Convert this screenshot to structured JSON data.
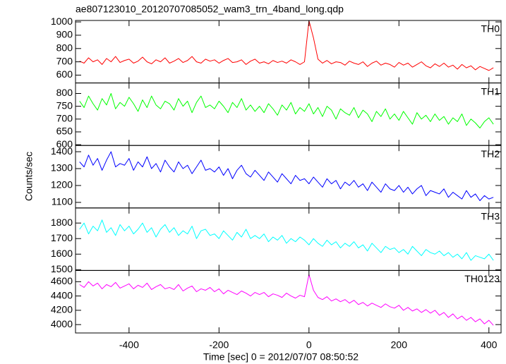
{
  "title": "ae807123010_20120707085052_wam3_trn_4band_long.qdp",
  "ylabel": "Counts/sec",
  "xlabel": "Time [sec] 0 = 2012/07/07 08:50:52",
  "chart_data": [
    {
      "type": "line",
      "label": "TH0",
      "xlim": [
        -519,
        427
      ],
      "xticks": [
        -400,
        -200,
        0,
        200,
        400
      ],
      "ylim": [
        541,
        1011
      ],
      "yticks": [
        600,
        700,
        800,
        900,
        1000
      ],
      "x": [
        -510,
        -500,
        -490,
        -480,
        -470,
        -460,
        -450,
        -440,
        -430,
        -420,
        -410,
        -400,
        -390,
        -380,
        -370,
        -360,
        -350,
        -340,
        -330,
        -320,
        -310,
        -300,
        -290,
        -280,
        -270,
        -260,
        -250,
        -240,
        -230,
        -220,
        -210,
        -200,
        -190,
        -180,
        -170,
        -160,
        -150,
        -140,
        -130,
        -120,
        -110,
        -100,
        -90,
        -80,
        -70,
        -60,
        -50,
        -40,
        -30,
        -20,
        -10,
        0,
        10,
        20,
        30,
        40,
        50,
        60,
        70,
        80,
        90,
        100,
        110,
        120,
        130,
        140,
        150,
        160,
        170,
        180,
        190,
        200,
        210,
        220,
        230,
        240,
        250,
        260,
        270,
        280,
        290,
        300,
        310,
        320,
        330,
        340,
        350,
        360,
        370,
        380,
        390,
        400,
        410
      ],
      "series": [
        {
          "name": "TH0",
          "color": "#ff0000",
          "values": [
            705,
            690,
            730,
            700,
            715,
            680,
            725,
            700,
            740,
            695,
            710,
            720,
            690,
            705,
            735,
            700,
            685,
            715,
            700,
            730,
            690,
            705,
            725,
            695,
            710,
            740,
            700,
            690,
            720,
            705,
            715,
            690,
            710,
            725,
            695,
            700,
            715,
            680,
            705,
            720,
            690,
            700,
            685,
            710,
            695,
            705,
            690,
            715,
            700,
            680,
            700,
            1010,
            880,
            720,
            690,
            710,
            685,
            700,
            695,
            675,
            705,
            690,
            680,
            700,
            665,
            690,
            705,
            675,
            690,
            680,
            660,
            695,
            675,
            690,
            660,
            680,
            700,
            670,
            655,
            685,
            665,
            690,
            660,
            675,
            645,
            680,
            655,
            670,
            640,
            665,
            650,
            635,
            655
          ]
        }
      ]
    },
    {
      "type": "line",
      "label": "TH1",
      "xlim": [
        -519,
        427
      ],
      "xticks": [
        -400,
        -200,
        0,
        200,
        400
      ],
      "ylim": [
        597,
        841
      ],
      "yticks": [
        600,
        650,
        700,
        750,
        800
      ],
      "x": [
        -510,
        -500,
        -490,
        -480,
        -470,
        -460,
        -450,
        -440,
        -430,
        -420,
        -410,
        -400,
        -390,
        -380,
        -370,
        -360,
        -350,
        -340,
        -330,
        -320,
        -310,
        -300,
        -290,
        -280,
        -270,
        -260,
        -250,
        -240,
        -230,
        -220,
        -210,
        -200,
        -190,
        -180,
        -170,
        -160,
        -150,
        -140,
        -130,
        -120,
        -110,
        -100,
        -90,
        -80,
        -70,
        -60,
        -50,
        -40,
        -30,
        -20,
        -10,
        0,
        10,
        20,
        30,
        40,
        50,
        60,
        70,
        80,
        90,
        100,
        110,
        120,
        130,
        140,
        150,
        160,
        170,
        180,
        190,
        200,
        210,
        220,
        230,
        240,
        250,
        260,
        270,
        280,
        290,
        300,
        310,
        320,
        330,
        340,
        350,
        360,
        370,
        380,
        390,
        400,
        410
      ],
      "series": [
        {
          "name": "TH1",
          "color": "#00ff00",
          "values": [
            770,
            745,
            790,
            760,
            735,
            780,
            755,
            800,
            740,
            765,
            750,
            785,
            760,
            730,
            775,
            745,
            790,
            755,
            740,
            770,
            760,
            735,
            780,
            750,
            770,
            725,
            765,
            790,
            745,
            755,
            740,
            770,
            750,
            725,
            765,
            745,
            780,
            735,
            755,
            730,
            750,
            725,
            760,
            740,
            715,
            755,
            735,
            765,
            720,
            745,
            730,
            760,
            720,
            745,
            710,
            750,
            735,
            700,
            740,
            725,
            715,
            745,
            705,
            735,
            720,
            690,
            730,
            710,
            740,
            700,
            720,
            695,
            730,
            705,
            680,
            725,
            700,
            715,
            690,
            720,
            695,
            710,
            680,
            705,
            690,
            720,
            675,
            700,
            685,
            665,
            690,
            705,
            680
          ]
        }
      ]
    },
    {
      "type": "line",
      "label": "TH2",
      "xlim": [
        -519,
        427
      ],
      "xticks": [
        -400,
        -200,
        0,
        200,
        400
      ],
      "ylim": [
        1067,
        1437
      ],
      "yticks": [
        1100,
        1200,
        1300,
        1400
      ],
      "x": [
        -510,
        -500,
        -490,
        -480,
        -470,
        -460,
        -450,
        -440,
        -430,
        -420,
        -410,
        -400,
        -390,
        -380,
        -370,
        -360,
        -350,
        -340,
        -330,
        -320,
        -310,
        -300,
        -290,
        -280,
        -270,
        -260,
        -250,
        -240,
        -230,
        -220,
        -210,
        -200,
        -190,
        -180,
        -170,
        -160,
        -150,
        -140,
        -130,
        -120,
        -110,
        -100,
        -90,
        -80,
        -70,
        -60,
        -50,
        -40,
        -30,
        -20,
        -10,
        0,
        10,
        20,
        30,
        40,
        50,
        60,
        70,
        80,
        90,
        100,
        110,
        120,
        130,
        140,
        150,
        160,
        170,
        180,
        190,
        200,
        210,
        220,
        230,
        240,
        250,
        260,
        270,
        280,
        290,
        300,
        310,
        320,
        330,
        340,
        350,
        360,
        370,
        380,
        390,
        400,
        410
      ],
      "series": [
        {
          "name": "TH2",
          "color": "#0000ff",
          "values": [
            1340,
            1310,
            1380,
            1320,
            1360,
            1290,
            1350,
            1400,
            1310,
            1330,
            1320,
            1360,
            1290,
            1340,
            1310,
            1370,
            1300,
            1330,
            1280,
            1350,
            1310,
            1280,
            1340,
            1300,
            1320,
            1270,
            1310,
            1350,
            1290,
            1300,
            1280,
            1310,
            1260,
            1300,
            1240,
            1290,
            1320,
            1270,
            1250,
            1290,
            1260,
            1230,
            1280,
            1250,
            1220,
            1270,
            1240,
            1210,
            1260,
            1230,
            1240,
            1210,
            1250,
            1220,
            1190,
            1240,
            1210,
            1230,
            1180,
            1220,
            1200,
            1230,
            1190,
            1210,
            1170,
            1220,
            1190,
            1160,
            1210,
            1180,
            1170,
            1200,
            1160,
            1190,
            1150,
            1180,
            1200,
            1140,
            1170,
            1160,
            1150,
            1180,
            1130,
            1160,
            1140,
            1120,
            1170,
            1130,
            1150,
            1110,
            1140,
            1120,
            1130
          ]
        }
      ]
    },
    {
      "type": "line",
      "label": "TH3",
      "xlim": [
        -519,
        427
      ],
      "xticks": [
        -400,
        -200,
        0,
        200,
        400
      ],
      "ylim": [
        1495,
        1897
      ],
      "yticks": [
        1500,
        1600,
        1700,
        1800
      ],
      "x": [
        -510,
        -500,
        -490,
        -480,
        -470,
        -460,
        -450,
        -440,
        -430,
        -420,
        -410,
        -400,
        -390,
        -380,
        -370,
        -360,
        -350,
        -340,
        -330,
        -320,
        -310,
        -300,
        -290,
        -280,
        -270,
        -260,
        -250,
        -240,
        -230,
        -220,
        -210,
        -200,
        -190,
        -180,
        -170,
        -160,
        -150,
        -140,
        -130,
        -120,
        -110,
        -100,
        -90,
        -80,
        -70,
        -60,
        -50,
        -40,
        -30,
        -20,
        -10,
        0,
        10,
        20,
        30,
        40,
        50,
        60,
        70,
        80,
        90,
        100,
        110,
        120,
        130,
        140,
        150,
        160,
        170,
        180,
        190,
        200,
        210,
        220,
        230,
        240,
        250,
        260,
        270,
        280,
        290,
        300,
        310,
        320,
        330,
        340,
        350,
        360,
        370,
        380,
        390,
        400,
        410
      ],
      "series": [
        {
          "name": "TH3",
          "color": "#00ffff",
          "values": [
            1760,
            1800,
            1730,
            1780,
            1750,
            1820,
            1740,
            1770,
            1720,
            1790,
            1750,
            1780,
            1730,
            1760,
            1800,
            1740,
            1770,
            1710,
            1760,
            1790,
            1740,
            1770,
            1720,
            1750,
            1730,
            1780,
            1700,
            1750,
            1760,
            1720,
            1730,
            1700,
            1750,
            1720,
            1690,
            1740,
            1710,
            1760,
            1700,
            1720,
            1700,
            1730,
            1680,
            1710,
            1690,
            1720,
            1670,
            1700,
            1680,
            1710,
            1690,
            1660,
            1700,
            1670,
            1650,
            1690,
            1660,
            1680,
            1640,
            1670,
            1650,
            1680,
            1640,
            1660,
            1620,
            1670,
            1640,
            1610,
            1650,
            1630,
            1640,
            1610,
            1630,
            1600,
            1650,
            1620,
            1590,
            1630,
            1610,
            1600,
            1620,
            1590,
            1610,
            1580,
            1600,
            1570,
            1610,
            1560,
            1590,
            1580,
            1570,
            1600,
            1560
          ]
        }
      ]
    },
    {
      "type": "line",
      "label": "TH0123",
      "xlim": [
        -519,
        427
      ],
      "xticks": [
        -400,
        -200,
        0,
        200,
        400
      ],
      "ylim": [
        3883,
        4757
      ],
      "yticks": [
        4000,
        4200,
        4400,
        4600
      ],
      "x": [
        -510,
        -500,
        -490,
        -480,
        -470,
        -460,
        -450,
        -440,
        -430,
        -420,
        -410,
        -400,
        -390,
        -380,
        -370,
        -360,
        -350,
        -340,
        -330,
        -320,
        -310,
        -300,
        -290,
        -280,
        -270,
        -260,
        -250,
        -240,
        -230,
        -220,
        -210,
        -200,
        -190,
        -180,
        -170,
        -160,
        -150,
        -140,
        -130,
        -120,
        -110,
        -100,
        -90,
        -80,
        -70,
        -60,
        -50,
        -40,
        -30,
        -20,
        -10,
        0,
        10,
        20,
        30,
        40,
        50,
        60,
        70,
        80,
        90,
        100,
        110,
        120,
        130,
        140,
        150,
        160,
        170,
        180,
        190,
        200,
        210,
        220,
        230,
        240,
        250,
        260,
        270,
        280,
        290,
        300,
        310,
        320,
        330,
        340,
        350,
        360,
        370,
        380,
        390,
        400,
        410
      ],
      "series": [
        {
          "name": "TH0123",
          "color": "#ff00ff",
          "values": [
            4560,
            4520,
            4600,
            4540,
            4580,
            4500,
            4560,
            4530,
            4590,
            4510,
            4540,
            4570,
            4500,
            4550,
            4520,
            4580,
            4490,
            4530,
            4560,
            4500,
            4520,
            4490,
            4560,
            4470,
            4510,
            4540,
            4460,
            4500,
            4480,
            4520,
            4460,
            4500,
            4430,
            4480,
            4450,
            4420,
            4470,
            4440,
            4400,
            4450,
            4420,
            4450,
            4390,
            4430,
            4410,
            4380,
            4440,
            4400,
            4370,
            4410,
            4390,
            4700,
            4480,
            4380,
            4350,
            4390,
            4330,
            4360,
            4320,
            4350,
            4300,
            4340,
            4280,
            4310,
            4260,
            4300,
            4270,
            4240,
            4290,
            4250,
            4230,
            4270,
            4200,
            4240,
            4190,
            4220,
            4170,
            4210,
            4160,
            4200,
            4130,
            4170,
            4100,
            4150,
            4080,
            4120,
            4060,
            4100,
            4040,
            4080,
            4010,
            4060,
            3990
          ]
        }
      ]
    }
  ]
}
